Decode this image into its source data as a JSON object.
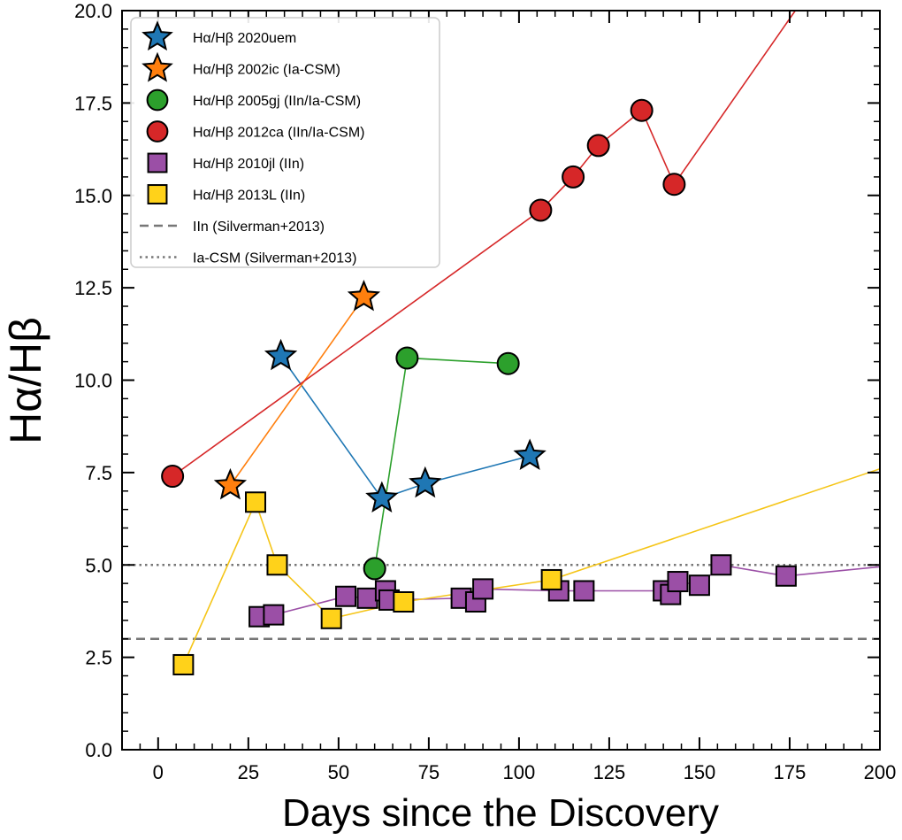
{
  "chart_data": {
    "type": "scatter",
    "xlabel": "Days since the Discovery",
    "ylabel": "Hα/Hβ",
    "xlim": [
      -10,
      200
    ],
    "ylim": [
      0,
      20
    ],
    "xticks": [
      0,
      25,
      50,
      75,
      100,
      125,
      150,
      175,
      200
    ],
    "yticks": [
      0.0,
      2.5,
      5.0,
      7.5,
      10.0,
      12.5,
      15.0,
      17.5,
      20.0
    ],
    "ytick_labels": [
      "0.0",
      "2.5",
      "5.0",
      "7.5",
      "10.0",
      "12.5",
      "15.0",
      "17.5",
      "20.0"
    ],
    "legend_position": "upper-left",
    "grid": false,
    "series": [
      {
        "name": "Hα/Hβ 2020uem",
        "marker": "star",
        "color": "#1f77b4",
        "x": [
          34,
          62,
          74,
          103
        ],
        "y": [
          10.65,
          6.8,
          7.2,
          7.95
        ]
      },
      {
        "name": "Hα/Hβ 2002ic (Ia-CSM)",
        "marker": "star",
        "color": "#ff7f0e",
        "x": [
          20,
          57
        ],
        "y": [
          7.15,
          12.25
        ]
      },
      {
        "name": "Hα/Hβ 2005gj (IIn/Ia-CSM)",
        "marker": "circle",
        "color": "#2ca02c",
        "x": [
          60,
          69,
          97
        ],
        "y": [
          4.9,
          10.6,
          10.45
        ]
      },
      {
        "name": "Hα/Hβ 2012ca (IIn/Ia-CSM)",
        "marker": "circle",
        "color": "#d62728",
        "x": [
          4,
          106,
          115,
          122,
          134,
          143
        ],
        "y": [
          7.4,
          14.6,
          15.5,
          16.35,
          17.3,
          15.3
        ],
        "extra_line": [
          [
            143,
            15.3
          ],
          [
            178,
            20.2
          ]
        ]
      },
      {
        "name": "Hα/Hβ 2010jl (IIn)",
        "marker": "square",
        "color": "#9b4fa6",
        "x": [
          28,
          32,
          52,
          58,
          63,
          64,
          84,
          88,
          90,
          111,
          118,
          140,
          142,
          144,
          150,
          156,
          174
        ],
        "y": [
          3.6,
          3.65,
          4.15,
          4.1,
          4.3,
          4.05,
          4.1,
          4.0,
          4.35,
          4.3,
          4.3,
          4.3,
          4.2,
          4.55,
          4.45,
          5.0,
          4.7
        ],
        "extra_line": [
          [
            174,
            4.7
          ],
          [
            200,
            4.95
          ]
        ]
      },
      {
        "name": "Hα/Hβ 2013L (IIn)",
        "marker": "square",
        "color": "#ffd21a",
        "line_color": "#f5c518",
        "x": [
          7,
          27,
          33,
          48,
          68,
          109
        ],
        "y": [
          2.3,
          6.7,
          5.0,
          3.55,
          4.0,
          4.6
        ],
        "extra_line": [
          [
            109,
            4.6
          ],
          [
            200,
            7.6
          ]
        ]
      }
    ],
    "reference_lines": [
      {
        "name": "IIn (Silverman+2013)",
        "y": 3.0,
        "style": "dashed",
        "color": "#777777"
      },
      {
        "name": "Ia-CSM (Silverman+2013)",
        "y": 5.0,
        "style": "dotted",
        "color": "#777777"
      }
    ]
  }
}
